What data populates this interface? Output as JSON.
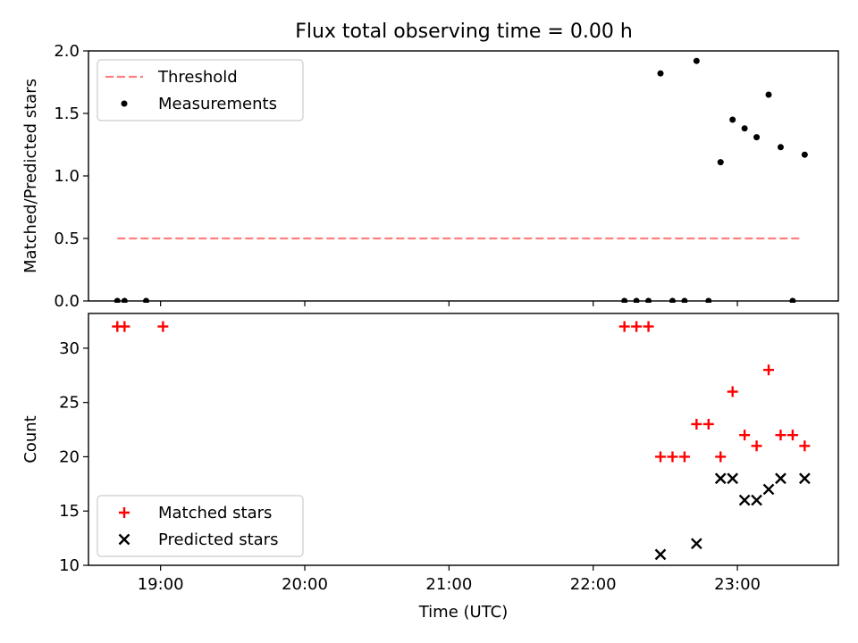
{
  "title": "Flux total observing time = 0.00 h",
  "chart_data": [
    {
      "type": "scatter",
      "ylabel": "Matched/Predicted stars",
      "xlabel": "",
      "xlim": [
        "18:30",
        "23:42"
      ],
      "ylim": [
        0,
        2.0
      ],
      "xticks": [
        "19:00",
        "20:00",
        "21:00",
        "22:00",
        "23:00"
      ],
      "yticks": [
        0.0,
        0.5,
        1.0,
        1.5,
        2.0
      ],
      "ytick_labels": [
        "0.0",
        "0.5",
        "1.0",
        "1.5",
        "2.0"
      ],
      "show_x_tick_labels": false,
      "legend_position": "upper-left",
      "threshold": {
        "name": "Threshold",
        "value": 0.5,
        "x_range": [
          "18:42",
          "23:27"
        ],
        "color": "#ff7f7f",
        "style": "dashed"
      },
      "series": [
        {
          "name": "Measurements",
          "marker": "dot",
          "color": "#000000",
          "points": [
            [
              "18:42",
              0.0
            ],
            [
              "18:45",
              0.0
            ],
            [
              "18:54",
              0.0
            ],
            [
              "22:13",
              0.0
            ],
            [
              "22:18",
              0.0
            ],
            [
              "22:23",
              0.0
            ],
            [
              "22:28",
              1.82
            ],
            [
              "22:33",
              0.0
            ],
            [
              "22:38",
              0.0
            ],
            [
              "22:43",
              1.92
            ],
            [
              "22:48",
              0.0
            ],
            [
              "22:53",
              1.11
            ],
            [
              "22:58",
              1.45
            ],
            [
              "23:03",
              1.38
            ],
            [
              "23:08",
              1.31
            ],
            [
              "23:13",
              1.65
            ],
            [
              "23:18",
              1.23
            ],
            [
              "23:23",
              0.0
            ],
            [
              "23:28",
              1.17
            ]
          ]
        }
      ]
    },
    {
      "type": "scatter",
      "ylabel": "Count",
      "xlabel": "Time (UTC)",
      "xlim": [
        "18:30",
        "23:42"
      ],
      "ylim": [
        10,
        33.2
      ],
      "xticks": [
        "19:00",
        "20:00",
        "21:00",
        "22:00",
        "23:00"
      ],
      "yticks": [
        10,
        15,
        20,
        25,
        30
      ],
      "ytick_labels": [
        "10",
        "15",
        "20",
        "25",
        "30"
      ],
      "show_x_tick_labels": true,
      "legend_position": "lower-left",
      "series": [
        {
          "name": "Matched stars",
          "marker": "plus",
          "color": "#ff0000",
          "points": [
            [
              "18:42",
              32
            ],
            [
              "18:45",
              32
            ],
            [
              "19:01",
              32
            ],
            [
              "22:13",
              32
            ],
            [
              "22:18",
              32
            ],
            [
              "22:23",
              32
            ],
            [
              "22:28",
              20
            ],
            [
              "22:33",
              20
            ],
            [
              "22:38",
              20
            ],
            [
              "22:43",
              23
            ],
            [
              "22:48",
              23
            ],
            [
              "22:53",
              20
            ],
            [
              "22:58",
              26
            ],
            [
              "23:03",
              22
            ],
            [
              "23:08",
              21
            ],
            [
              "23:13",
              28
            ],
            [
              "23:18",
              22
            ],
            [
              "23:23",
              22
            ],
            [
              "23:28",
              21
            ]
          ]
        },
        {
          "name": "Predicted stars",
          "marker": "x",
          "color": "#000000",
          "points": [
            [
              "22:28",
              11
            ],
            [
              "22:43",
              12
            ],
            [
              "22:53",
              18
            ],
            [
              "22:58",
              18
            ],
            [
              "23:03",
              16
            ],
            [
              "23:08",
              16
            ],
            [
              "23:13",
              17
            ],
            [
              "23:18",
              18
            ],
            [
              "23:28",
              18
            ]
          ]
        }
      ]
    }
  ]
}
